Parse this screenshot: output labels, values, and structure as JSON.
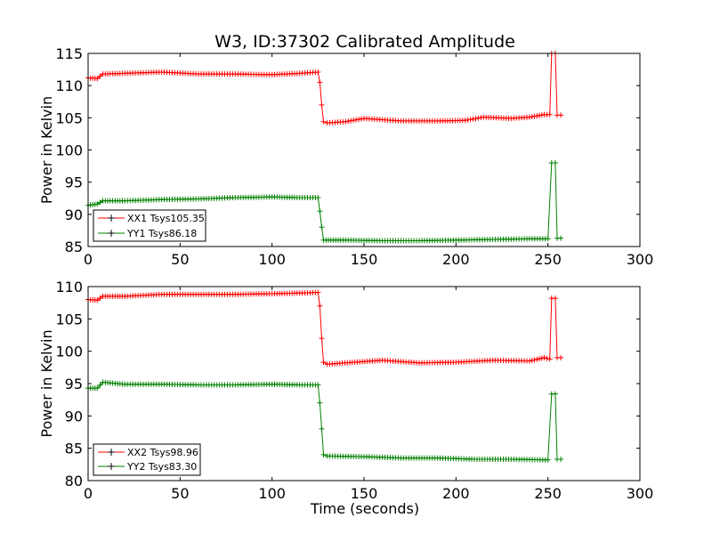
{
  "figure": {
    "title": "W3, ID:37302 Calibrated Amplitude",
    "colors": {
      "xx": "#ff0000",
      "yy": "#008000",
      "frame": "#000000",
      "background": "#ffffff"
    }
  },
  "chart_data": [
    {
      "type": "line",
      "marker": "+",
      "title": "W3, ID:37302 Calibrated Amplitude",
      "xlabel": "",
      "ylabel": "Power in Kelvin",
      "xlim": [
        0,
        300
      ],
      "ylim": [
        85,
        115
      ],
      "xticks": [
        "0",
        "50",
        "100",
        "150",
        "200",
        "250",
        "300"
      ],
      "yticks": [
        "85",
        "90",
        "95",
        "100",
        "105",
        "110",
        "115"
      ],
      "grid": false,
      "legend_position": "lower-left",
      "series": [
        {
          "name": "XX1 Tsys105.35",
          "color": "#ff0000",
          "points": [
            [
              0,
              111.2
            ],
            [
              5,
              111.1
            ],
            [
              8,
              111.8
            ],
            [
              20,
              111.9
            ],
            [
              40,
              112.1
            ],
            [
              60,
              111.8
            ],
            [
              80,
              111.8
            ],
            [
              100,
              111.7
            ],
            [
              115,
              111.9
            ],
            [
              125,
              112.1
            ],
            [
              126,
              110.5
            ],
            [
              127,
              107
            ],
            [
              128,
              104.4
            ],
            [
              130,
              104.2
            ],
            [
              140,
              104.4
            ],
            [
              150,
              104.9
            ],
            [
              170,
              104.5
            ],
            [
              190,
              104.5
            ],
            [
              205,
              104.6
            ],
            [
              215,
              105.1
            ],
            [
              230,
              104.9
            ],
            [
              240,
              105.1
            ],
            [
              248,
              105.5
            ],
            [
              251,
              105.5
            ],
            [
              252,
              115
            ],
            [
              254,
              115
            ],
            [
              255,
              105.4
            ],
            [
              257,
              105.4
            ]
          ]
        },
        {
          "name": "YY1 Tsys86.18",
          "color": "#008000",
          "points": [
            [
              0,
              91.4
            ],
            [
              5,
              91.6
            ],
            [
              8,
              92.1
            ],
            [
              20,
              92.1
            ],
            [
              40,
              92.3
            ],
            [
              60,
              92.4
            ],
            [
              80,
              92.6
            ],
            [
              100,
              92.7
            ],
            [
              115,
              92.6
            ],
            [
              125,
              92.6
            ],
            [
              126,
              90.5
            ],
            [
              127,
              88
            ],
            [
              128,
              86
            ],
            [
              140,
              86
            ],
            [
              160,
              85.9
            ],
            [
              180,
              85.9
            ],
            [
              200,
              86
            ],
            [
              220,
              86.1
            ],
            [
              240,
              86.2
            ],
            [
              250,
              86.2
            ],
            [
              252,
              98
            ],
            [
              254,
              98
            ],
            [
              255,
              86.3
            ],
            [
              257,
              86.3
            ]
          ]
        }
      ]
    },
    {
      "type": "line",
      "marker": "+",
      "title": "",
      "xlabel": "Time (seconds)",
      "ylabel": "Power in Kelvin",
      "xlim": [
        0,
        300
      ],
      "ylim": [
        80,
        110
      ],
      "xticks": [
        "0",
        "50",
        "100",
        "150",
        "200",
        "250",
        "300"
      ],
      "yticks": [
        "80",
        "85",
        "90",
        "95",
        "100",
        "105",
        "110"
      ],
      "grid": false,
      "legend_position": "lower-left",
      "series": [
        {
          "name": "XX2 Tsys98.96",
          "color": "#ff0000",
          "points": [
            [
              0,
              108
            ],
            [
              5,
              107.9
            ],
            [
              8,
              108.5
            ],
            [
              20,
              108.5
            ],
            [
              40,
              108.8
            ],
            [
              60,
              108.8
            ],
            [
              80,
              108.8
            ],
            [
              100,
              108.9
            ],
            [
              115,
              109
            ],
            [
              125,
              109.1
            ],
            [
              126,
              107
            ],
            [
              127,
              102
            ],
            [
              128,
              98.3
            ],
            [
              130,
              98
            ],
            [
              145,
              98.3
            ],
            [
              160,
              98.6
            ],
            [
              180,
              98.2
            ],
            [
              200,
              98.3
            ],
            [
              220,
              98.6
            ],
            [
              240,
              98.5
            ],
            [
              248,
              99
            ],
            [
              251,
              98.8
            ],
            [
              252,
              108.2
            ],
            [
              254,
              108.2
            ],
            [
              255,
              99
            ],
            [
              257,
              99
            ]
          ]
        },
        {
          "name": "YY2 Tsys83.30",
          "color": "#008000",
          "points": [
            [
              0,
              94.3
            ],
            [
              5,
              94.3
            ],
            [
              8,
              95.2
            ],
            [
              20,
              94.9
            ],
            [
              40,
              94.9
            ],
            [
              60,
              94.8
            ],
            [
              80,
              94.8
            ],
            [
              100,
              94.9
            ],
            [
              115,
              94.8
            ],
            [
              125,
              94.8
            ],
            [
              126,
              92
            ],
            [
              127,
              88
            ],
            [
              128,
              84
            ],
            [
              130,
              83.8
            ],
            [
              150,
              83.7
            ],
            [
              170,
              83.5
            ],
            [
              190,
              83.5
            ],
            [
              210,
              83.3
            ],
            [
              230,
              83.3
            ],
            [
              250,
              83.2
            ],
            [
              252,
              93.4
            ],
            [
              254,
              93.4
            ],
            [
              255,
              83.3
            ],
            [
              257,
              83.3
            ]
          ]
        }
      ]
    }
  ]
}
